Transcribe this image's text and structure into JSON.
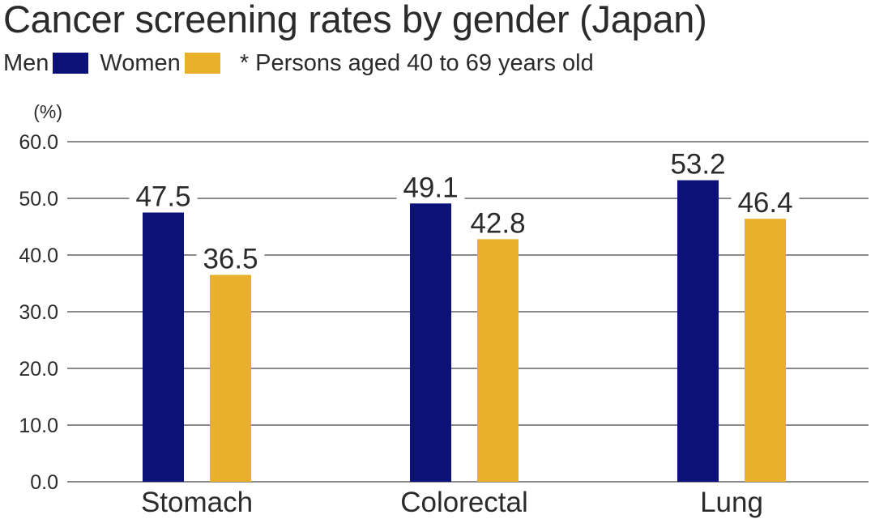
{
  "chart_data": {
    "type": "bar",
    "title": "Cancer screening rates by gender (Japan)",
    "note": "* Persons aged 40 to 69 years old",
    "ylabel": "(%)",
    "xlabel": "",
    "ylim": [
      0,
      60
    ],
    "yticks": [
      "0.0",
      "10.0",
      "20.0",
      "30.0",
      "40.0",
      "50.0",
      "60.0"
    ],
    "grid": true,
    "legend_position": "top-left",
    "categories": [
      "Stomach",
      "Colorectal",
      "Lung"
    ],
    "series": [
      {
        "name": "Men",
        "color": "#0b1177",
        "values": [
          47.5,
          49.1,
          53.2
        ]
      },
      {
        "name": "Women",
        "color": "#e9b12b",
        "values": [
          36.5,
          42.8,
          46.4
        ]
      }
    ]
  }
}
